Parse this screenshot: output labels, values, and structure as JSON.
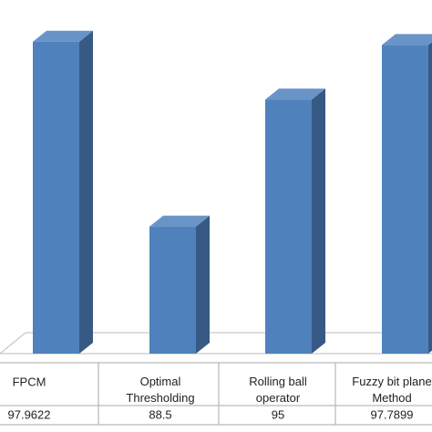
{
  "chart_data": {
    "type": "bar3d",
    "categories": [
      "FPCM",
      "Optimal Thresholding",
      "Rolling ball operator",
      "Fuzzy bit plane Method"
    ],
    "values": [
      97.9622,
      88.5,
      95,
      97.7899
    ],
    "color": "#4f81bd",
    "ylim": [
      82,
      100
    ]
  }
}
